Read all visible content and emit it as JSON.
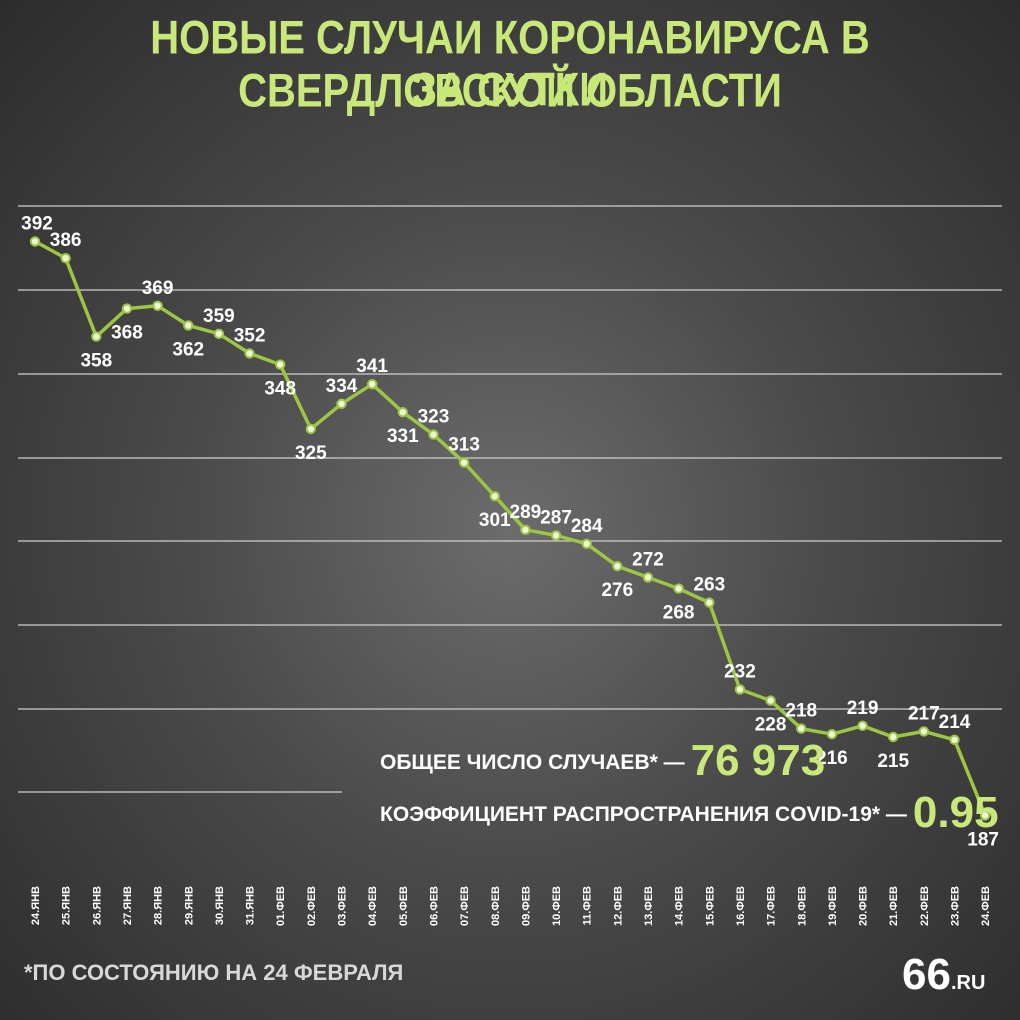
{
  "title_line1": "НОВЫЕ СЛУЧАИ КОРОНАВИРУСА В СВЕРДЛОВСКОЙ ОБЛАСТИ",
  "title_line2": "ЗА СУТКИ",
  "stats": {
    "total_label": "ОБЩЕЕ ЧИСЛО СЛУЧАЕВ* —",
    "total_value": "76 973",
    "coef_label": "КОЭФФИЦИЕНТ РАСПРОСТРАНЕНИЯ COVID-19* —",
    "coef_value": "0.95"
  },
  "footnote": "*ПО СОСТОЯНИЮ НА 24 ФЕВРАЛЯ",
  "logo": {
    "number": "66",
    "domain": ".RU"
  },
  "colors": {
    "accent": "#c8e87a",
    "line": "#9cc644",
    "grid": "#cfcfcf"
  },
  "chart_data": {
    "type": "line",
    "title": "НОВЫЕ СЛУЧАИ КОРОНАВИРУСА В СВЕРДЛОВСКОЙ ОБЛАСТИ ЗА СУТКИ",
    "categories": [
      "24.ЯНВ",
      "25.ЯНВ",
      "26.ЯНВ",
      "27.ЯНВ",
      "28.ЯНВ",
      "29.ЯНВ",
      "30.ЯНВ",
      "31.ЯНВ",
      "01.ФЕВ",
      "02.ФЕВ",
      "03.ФЕВ",
      "04.ФЕВ",
      "05.ФЕВ",
      "06.ФЕВ",
      "07.ФЕВ",
      "08.ФЕВ",
      "09.ФЕВ",
      "10.ФЕВ",
      "11.ФЕВ",
      "12.ФЕВ",
      "13.ФЕВ",
      "14.ФЕВ",
      "15.ФЕВ",
      "16.ФЕВ",
      "17.ФЕВ",
      "18.ФЕВ",
      "19.ФЕВ",
      "20.ФЕВ",
      "21.ФЕВ",
      "22.ФЕВ",
      "23.ФЕВ",
      "24.ФЕВ"
    ],
    "values": [
      392,
      386,
      358,
      368,
      369,
      362,
      359,
      352,
      348,
      325,
      334,
      341,
      331,
      323,
      313,
      301,
      289,
      287,
      284,
      276,
      272,
      268,
      263,
      232,
      228,
      218,
      216,
      219,
      215,
      217,
      214,
      187
    ],
    "label_position": [
      "above",
      "above",
      "below",
      "below",
      "above",
      "below",
      "above",
      "above",
      "below",
      "below",
      "above",
      "above",
      "below",
      "above",
      "above",
      "below",
      "above",
      "above",
      "above",
      "below",
      "above",
      "below",
      "above",
      "above",
      "below",
      "above",
      "below",
      "above",
      "below",
      "above",
      "above",
      "below"
    ],
    "ylim": [
      100,
      400
    ],
    "grid": true,
    "xlabel": "",
    "ylabel": ""
  }
}
